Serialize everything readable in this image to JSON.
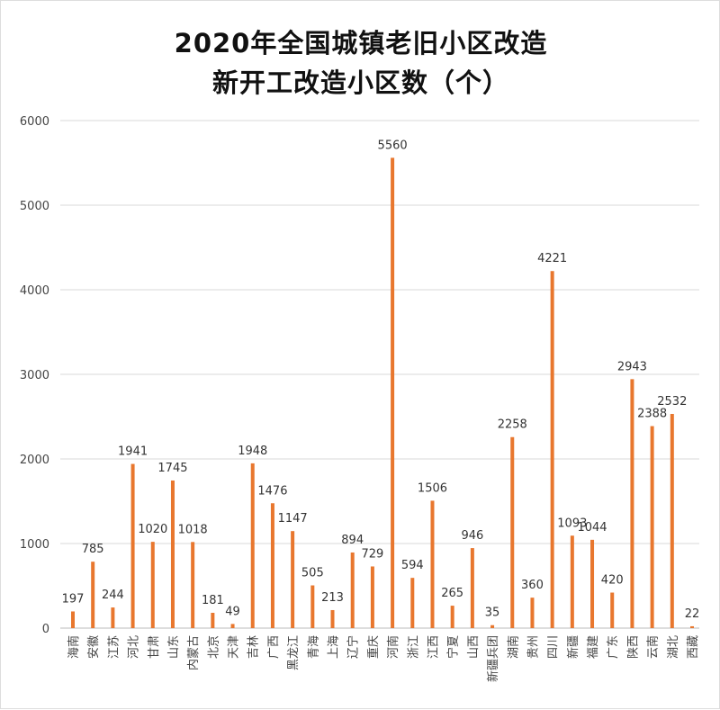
{
  "chart_data": {
    "type": "bar",
    "title": "2020年全国城镇老旧小区改造",
    "subtitle": "新开工改造小区数（个）",
    "xlabel": "",
    "ylabel": "",
    "ylim": [
      0,
      6000
    ],
    "yticks": [
      0,
      1000,
      2000,
      3000,
      4000,
      5000,
      6000
    ],
    "grid": true,
    "bar_color": "#E8772E",
    "categories": [
      "海南",
      "安徽",
      "江苏",
      "河北",
      "甘肃",
      "山东",
      "内蒙古",
      "北京",
      "天津",
      "吉林",
      "广西",
      "黑龙江",
      "青海",
      "上海",
      "辽宁",
      "重庆",
      "河南",
      "浙江",
      "江西",
      "宁夏",
      "山西",
      "新疆兵团",
      "湖南",
      "贵州",
      "四川",
      "新疆",
      "福建",
      "广东",
      "陕西",
      "云南",
      "湖北",
      "西藏"
    ],
    "values": [
      197,
      785,
      244,
      1941,
      1020,
      1745,
      1018,
      181,
      49,
      1948,
      1476,
      1147,
      505,
      213,
      894,
      729,
      5560,
      594,
      1506,
      265,
      946,
      35,
      2258,
      360,
      4221,
      1093,
      1044,
      420,
      2943,
      2388,
      2532,
      22
    ]
  }
}
